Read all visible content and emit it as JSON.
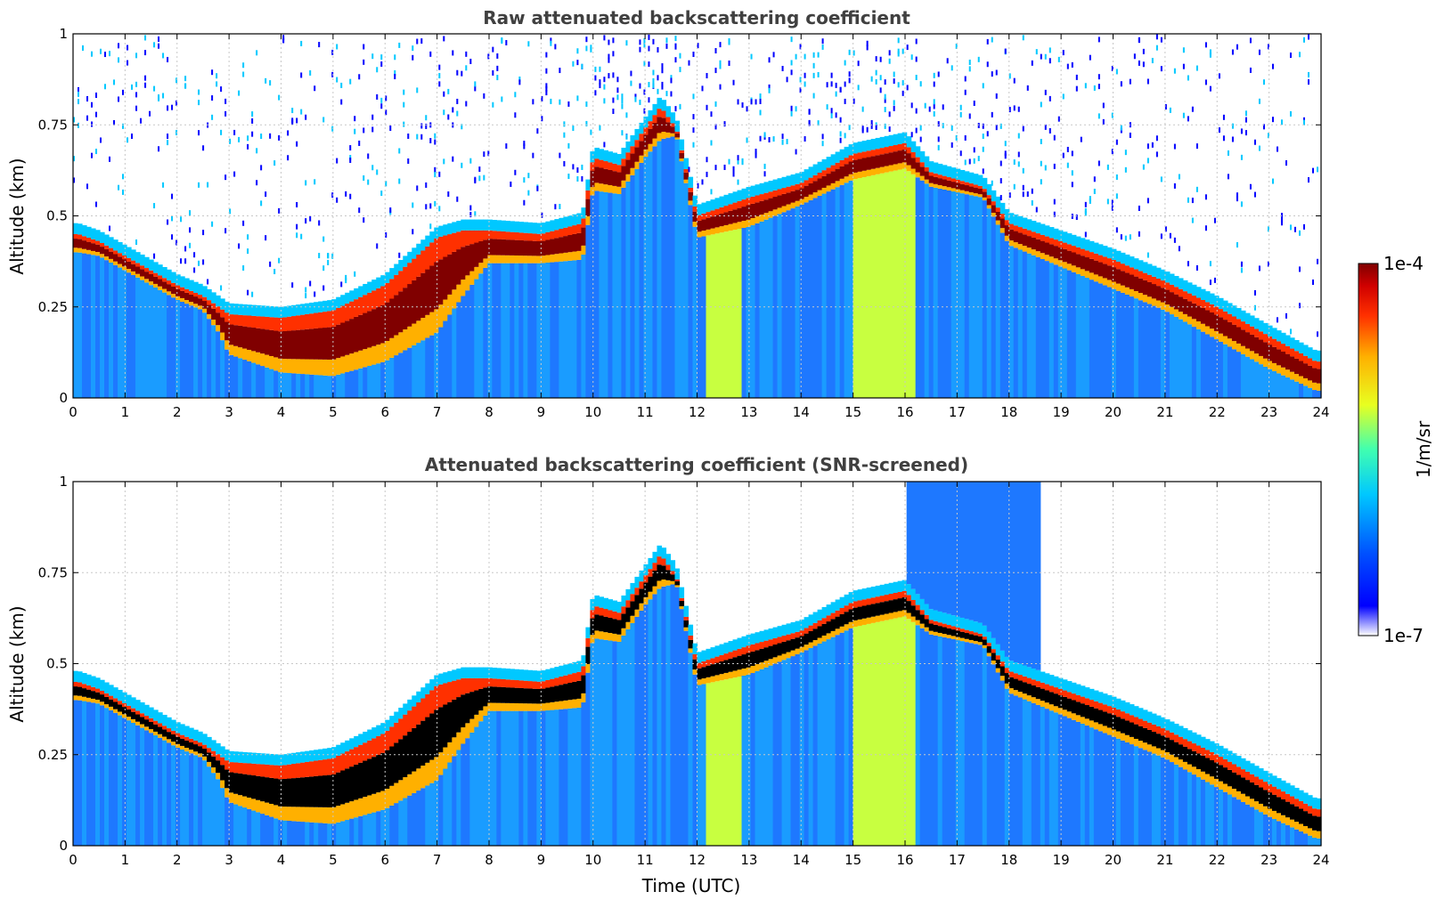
{
  "chart_data": [
    {
      "type": "heatmap",
      "title": "Raw attenuated backscattering coefficient",
      "ylabel": "Altitude (km)",
      "xlabel": "",
      "xlim": [
        0,
        24
      ],
      "ylim": [
        0,
        1
      ],
      "x_ticks": [
        "0",
        "1",
        "2",
        "3",
        "4",
        "5",
        "6",
        "7",
        "8",
        "9",
        "10",
        "11",
        "12",
        "13",
        "14",
        "15",
        "16",
        "17",
        "18",
        "19",
        "20",
        "21",
        "22",
        "23",
        "24"
      ],
      "y_ticks": [
        "0",
        "0.25",
        "0.5",
        "0.75",
        "1"
      ],
      "grid": true,
      "screened": false,
      "cloud_base_km": {
        "time": [
          0.1,
          0.5,
          1,
          1.5,
          2,
          2.5,
          2.8,
          3,
          4,
          5,
          6,
          7,
          7.5,
          8,
          9,
          9.8,
          10,
          10.5,
          11,
          11.3,
          11.6,
          12,
          13,
          14,
          15,
          16,
          16.5,
          17.5,
          18,
          19,
          20,
          21,
          22,
          23,
          23.9
        ],
        "base": [
          0.4,
          0.39,
          0.35,
          0.31,
          0.27,
          0.24,
          0.18,
          0.12,
          0.07,
          0.06,
          0.1,
          0.18,
          0.28,
          0.37,
          0.37,
          0.38,
          0.57,
          0.56,
          0.66,
          0.71,
          0.72,
          0.44,
          0.47,
          0.53,
          0.6,
          0.63,
          0.58,
          0.55,
          0.42,
          0.36,
          0.3,
          0.24,
          0.16,
          0.08,
          0.02
        ],
        "top": [
          0.45,
          0.43,
          0.39,
          0.35,
          0.31,
          0.28,
          0.25,
          0.23,
          0.22,
          0.24,
          0.31,
          0.44,
          0.46,
          0.46,
          0.45,
          0.48,
          0.66,
          0.64,
          0.74,
          0.8,
          0.74,
          0.5,
          0.55,
          0.59,
          0.67,
          0.7,
          0.62,
          0.58,
          0.48,
          0.43,
          0.38,
          0.32,
          0.25,
          0.17,
          0.1
        ]
      }
    },
    {
      "type": "heatmap",
      "title": "Attenuated backscattering coefficient (SNR-screened)",
      "ylabel": "Altitude (km)",
      "xlabel": "Time (UTC)",
      "xlim": [
        0,
        24
      ],
      "ylim": [
        0,
        1
      ],
      "x_ticks": [
        "0",
        "1",
        "2",
        "3",
        "4",
        "5",
        "6",
        "7",
        "8",
        "9",
        "10",
        "11",
        "12",
        "13",
        "14",
        "15",
        "16",
        "17",
        "18",
        "19",
        "20",
        "21",
        "22",
        "23",
        "24"
      ],
      "y_ticks": [
        "0",
        "0.25",
        "0.5",
        "0.75",
        "1"
      ],
      "grid": true,
      "screened": true,
      "cloud_base_km": "same as raw panel"
    }
  ],
  "colorbar": {
    "label": "1/m/sr",
    "min_label": "1e-7",
    "max_label": "1e-4",
    "scale": "log",
    "colors": [
      "#ffffff",
      "#0000ff",
      "#0050ff",
      "#00c8ff",
      "#40ffb0",
      "#e8ff20",
      "#ffb000",
      "#ff3000",
      "#d00000",
      "#800000"
    ]
  }
}
